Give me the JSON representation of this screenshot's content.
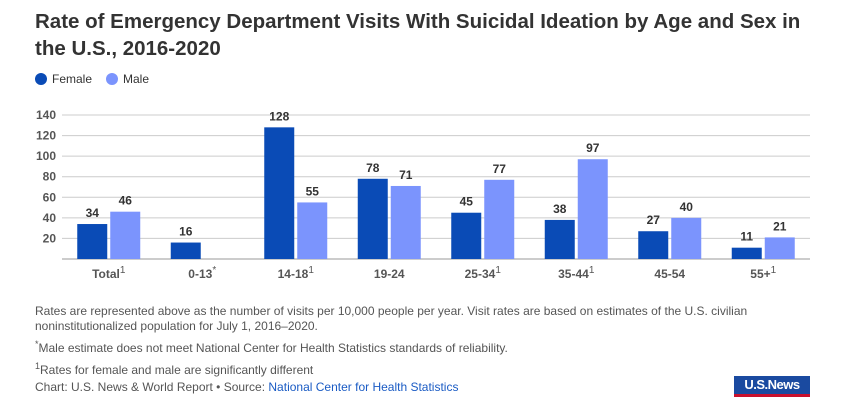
{
  "title": "Rate of Emergency Department Visits With Suicidal Ideation by Age and Sex in the U.S., 2016-2020",
  "chart_data": {
    "type": "bar",
    "categories": [
      "Total",
      "0-13",
      "14-18",
      "19-24",
      "25-34",
      "35-44",
      "45-54",
      "55+"
    ],
    "category_marks": [
      "1",
      "*",
      "1",
      "",
      "1",
      "1",
      "",
      "1"
    ],
    "series": [
      {
        "name": "Female",
        "color": "#0a4bb6",
        "values": [
          34,
          16,
          128,
          78,
          45,
          38,
          27,
          11
        ]
      },
      {
        "name": "Male",
        "color": "#7b94fd",
        "values": [
          46,
          null,
          55,
          71,
          77,
          97,
          40,
          21
        ]
      }
    ],
    "yticks": [
      20,
      40,
      60,
      80,
      100,
      120,
      140
    ],
    "ylim": [
      0,
      140
    ],
    "grid": true,
    "legend": "top-left"
  },
  "notes": {
    "rates": "Rates are represented above as the number of visits per 10,000 people per year. Visit rates are based on estimates of the U.S. civilian noninstitutionalized population for July 1, 2016–2020.",
    "star_mark": "*",
    "star": "Male estimate does not meet National Center for Health Statistics standards of reliability.",
    "one_mark": "1",
    "one": "Rates for female and male are significantly different"
  },
  "credit": {
    "prefix": "Chart: U.S. News & World Report • Source: ",
    "source": "National Center for Health Statistics"
  },
  "logo": "USNews"
}
